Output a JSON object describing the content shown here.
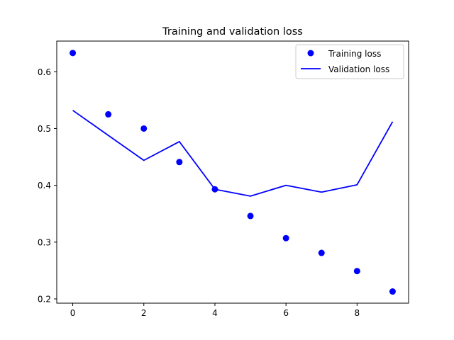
{
  "chart_data": {
    "type": "line",
    "title": "Training and validation loss",
    "xlabel": "",
    "ylabel": "",
    "xlim": [
      -0.45,
      9.45
    ],
    "ylim": [
      0.1925,
      0.654
    ],
    "xticks": [
      0,
      2,
      4,
      6,
      8
    ],
    "yticks": [
      0.2,
      0.3,
      0.4,
      0.5,
      0.6
    ],
    "grid": false,
    "legend_position": "top-right",
    "series": [
      {
        "name": "Training loss",
        "style": "markers",
        "color": "#0000ff",
        "x": [
          0,
          1,
          2,
          3,
          4,
          5,
          6,
          7,
          8,
          9
        ],
        "y": [
          0.633,
          0.525,
          0.5,
          0.441,
          0.393,
          0.346,
          0.307,
          0.281,
          0.249,
          0.213
        ]
      },
      {
        "name": "Validation loss",
        "style": "line",
        "color": "#0000ff",
        "x": [
          0,
          1,
          2,
          3,
          4,
          5,
          6,
          7,
          8,
          9
        ],
        "y": [
          0.532,
          0.488,
          0.444,
          0.477,
          0.393,
          0.381,
          0.4,
          0.388,
          0.401,
          0.512
        ]
      }
    ]
  }
}
